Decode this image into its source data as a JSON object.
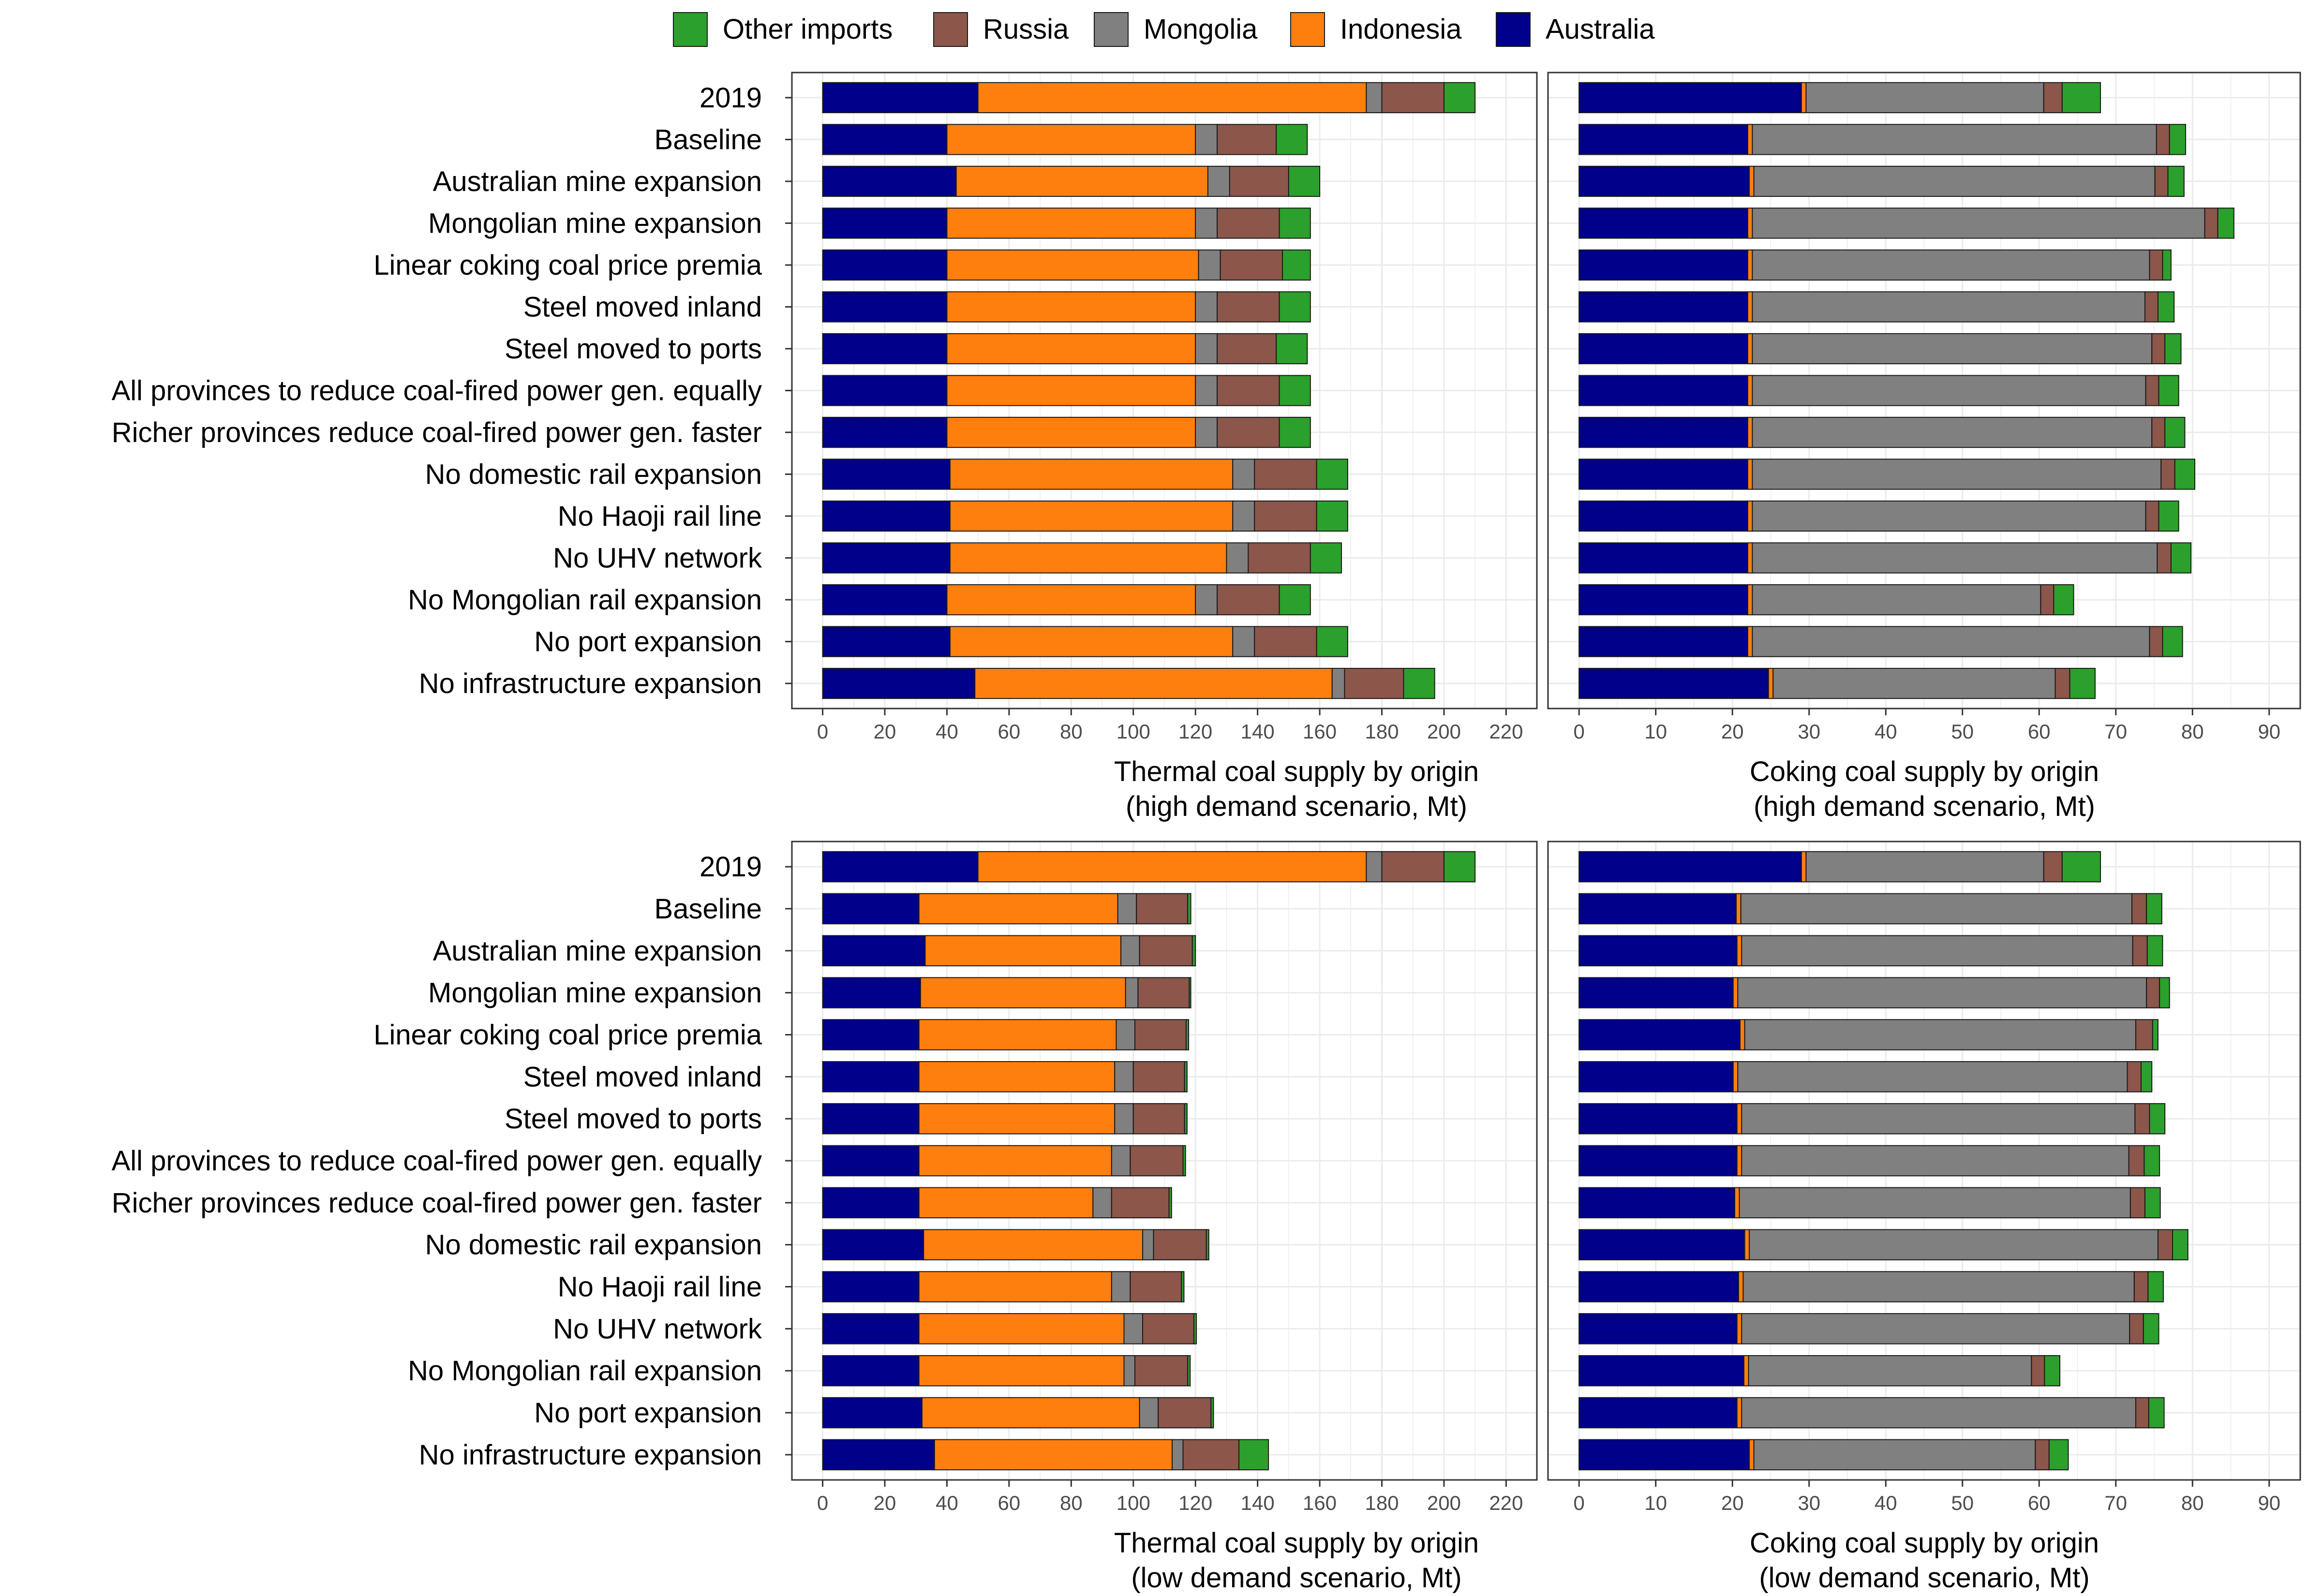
{
  "colors": {
    "Australia": "#00008b",
    "Indonesia": "#ff7f0e",
    "Mongolia": "#808080",
    "Russia": "#8c564b",
    "Other imports": "#2ca02c",
    "grid": "#ebebeb",
    "panel_border": "#333333",
    "bar_outline": "#1a1a1a"
  },
  "legend": {
    "items": [
      {
        "name": "Other imports",
        "color_key": "Other imports"
      },
      {
        "name": "Russia",
        "color_key": "Russia"
      },
      {
        "name": "Mongolia",
        "color_key": "Mongolia"
      },
      {
        "name": "Indonesia",
        "color_key": "Indonesia"
      },
      {
        "name": "Australia",
        "color_key": "Australia"
      }
    ]
  },
  "chart_data": [
    {
      "type": "bar",
      "orientation": "horizontal",
      "stacked": true,
      "title": "",
      "xlabel": "Thermal coal supply by origin\n(high demand scenario, Mt)",
      "xlim": [
        0,
        220
      ],
      "xticks": [
        0,
        20,
        40,
        60,
        80,
        100,
        120,
        140,
        160,
        180,
        200,
        220
      ],
      "categories": [
        "2019",
        "Baseline",
        "Australian mine expansion",
        "Mongolian mine expansion",
        "Linear coking coal price premia",
        "Steel moved inland",
        "Steel moved to ports",
        "All provinces to reduce coal-fired power gen. equally",
        "Richer provinces reduce coal-fired power gen. faster",
        "No domestic rail expansion",
        "No Haoji rail line",
        "No UHV network",
        "No Mongolian rail expansion",
        "No port expansion",
        "No infrastructure expansion"
      ],
      "series": [
        {
          "name": "Australia",
          "values": [
            50,
            40,
            43,
            40,
            40,
            40,
            40,
            40,
            40,
            41,
            41,
            41,
            40,
            41,
            49
          ]
        },
        {
          "name": "Indonesia",
          "values": [
            125,
            80,
            81,
            80,
            81,
            80,
            80,
            80,
            80,
            91,
            91,
            89,
            80,
            91,
            115
          ]
        },
        {
          "name": "Mongolia",
          "values": [
            5,
            7,
            7,
            7,
            7,
            7,
            7,
            7,
            7,
            7,
            7,
            7,
            7,
            7,
            4
          ]
        },
        {
          "name": "Russia",
          "values": [
            20,
            19,
            19,
            20,
            20,
            20,
            19,
            20,
            20,
            20,
            20,
            20,
            20,
            20,
            19
          ]
        },
        {
          "name": "Other imports",
          "values": [
            10,
            10,
            10,
            10,
            9,
            10,
            10,
            10,
            10,
            10,
            10,
            10,
            10,
            10,
            10
          ]
        }
      ]
    },
    {
      "type": "bar",
      "orientation": "horizontal",
      "stacked": true,
      "title": "",
      "xlabel": "Coking coal supply by origin\n(high demand scenario, Mt)",
      "xlim": [
        0,
        90
      ],
      "xticks": [
        0,
        10,
        20,
        30,
        40,
        50,
        60,
        70,
        80,
        90
      ],
      "categories": [
        "2019",
        "Baseline",
        "Australian mine expansion",
        "Mongolian mine expansion",
        "Linear coking coal price premia",
        "Steel moved inland",
        "Steel moved to ports",
        "All provinces to reduce coal-fired power gen. equally",
        "Richer provinces reduce coal-fired power gen. faster",
        "No domestic rail expansion",
        "No Haoji rail line",
        "No UHV network",
        "No Mongolian rail expansion",
        "No port expansion",
        "No infrastructure expansion"
      ],
      "series": [
        {
          "name": "Australia",
          "values": [
            29,
            22,
            22.2,
            22,
            22,
            22,
            22,
            22,
            22,
            22,
            22,
            22,
            22,
            22,
            24.7
          ]
        },
        {
          "name": "Indonesia",
          "values": [
            0.6,
            0.6,
            0.6,
            0.6,
            0.6,
            0.6,
            0.6,
            0.6,
            0.6,
            0.6,
            0.6,
            0.6,
            0.6,
            0.6,
            0.6
          ]
        },
        {
          "name": "Mongolia",
          "values": [
            31,
            52.7,
            52.3,
            59,
            51.8,
            51.2,
            52.1,
            51.3,
            52.1,
            53.3,
            51.3,
            52.8,
            37.6,
            51.8,
            36.8
          ]
        },
        {
          "name": "Russia",
          "values": [
            2.4,
            1.7,
            1.7,
            1.7,
            1.7,
            1.7,
            1.7,
            1.7,
            1.7,
            1.8,
            1.7,
            1.8,
            1.7,
            1.7,
            1.9
          ]
        },
        {
          "name": "Other imports",
          "values": [
            5,
            2.1,
            2.1,
            2.1,
            1.1,
            2.1,
            2.1,
            2.6,
            2.6,
            2.6,
            2.6,
            2.6,
            2.6,
            2.6,
            3.3
          ]
        }
      ]
    },
    {
      "type": "bar",
      "orientation": "horizontal",
      "stacked": true,
      "title": "",
      "xlabel": "Thermal coal supply by origin\n(low demand scenario, Mt)",
      "xlim": [
        0,
        220
      ],
      "xticks": [
        0,
        20,
        40,
        60,
        80,
        100,
        120,
        140,
        160,
        180,
        200,
        220
      ],
      "categories": [
        "2019",
        "Baseline",
        "Australian mine expansion",
        "Mongolian mine expansion",
        "Linear coking coal price premia",
        "Steel moved inland",
        "Steel moved to ports",
        "All provinces to reduce coal-fired power gen. equally",
        "Richer provinces reduce coal-fired power gen. faster",
        "No domestic rail expansion",
        "No Haoji rail line",
        "No UHV network",
        "No Mongolian rail expansion",
        "No port expansion",
        "No infrastructure expansion"
      ],
      "series": [
        {
          "name": "Australia",
          "values": [
            50,
            31,
            33,
            31.5,
            31,
            31,
            31,
            31,
            31,
            32.5,
            31,
            31,
            31,
            32,
            36
          ]
        },
        {
          "name": "Indonesia",
          "values": [
            125,
            64,
            63,
            66,
            63.5,
            63,
            63,
            62,
            56,
            70.5,
            62,
            66,
            66,
            70,
            76.5
          ]
        },
        {
          "name": "Mongolia",
          "values": [
            5,
            6,
            6,
            4,
            6,
            6,
            6,
            6,
            6,
            3.5,
            6,
            6,
            3.5,
            6,
            3.5
          ]
        },
        {
          "name": "Russia",
          "values": [
            20,
            16.5,
            17,
            16.5,
            16.5,
            16.5,
            16.5,
            17,
            18.5,
            17,
            16.5,
            16.5,
            17,
            17,
            18
          ]
        },
        {
          "name": "Other imports",
          "values": [
            10,
            1,
            1,
            0.5,
            0.8,
            0.8,
            0.8,
            0.8,
            0.8,
            0.8,
            0.8,
            0.8,
            0.8,
            0.8,
            9.5
          ]
        }
      ]
    },
    {
      "type": "bar",
      "orientation": "horizontal",
      "stacked": true,
      "title": "",
      "xlabel": "Coking coal supply by origin\n(low demand scenario, Mt)",
      "xlim": [
        0,
        90
      ],
      "xticks": [
        0,
        10,
        20,
        30,
        40,
        50,
        60,
        70,
        80,
        90
      ],
      "categories": [
        "2019",
        "Baseline",
        "Australian mine expansion",
        "Mongolian mine expansion",
        "Linear coking coal price premia",
        "Steel moved inland",
        "Steel moved to ports",
        "All provinces to reduce coal-fired power gen. equally",
        "Richer provinces reduce coal-fired power gen. faster",
        "No domestic rail expansion",
        "No Haoji rail line",
        "No UHV network",
        "No Mongolian rail expansion",
        "No port expansion",
        "No infrastructure expansion"
      ],
      "series": [
        {
          "name": "Australia",
          "values": [
            29,
            20.5,
            20.6,
            20.1,
            21,
            20.1,
            20.6,
            20.6,
            20.3,
            21.6,
            20.8,
            20.6,
            21.5,
            20.6,
            22.2
          ]
        },
        {
          "name": "Indonesia",
          "values": [
            0.6,
            0.6,
            0.6,
            0.6,
            0.6,
            0.6,
            0.6,
            0.6,
            0.6,
            0.6,
            0.6,
            0.6,
            0.6,
            0.6,
            0.6
          ]
        },
        {
          "name": "Mongolia",
          "values": [
            31,
            51,
            51,
            53.3,
            51,
            50.8,
            51.3,
            50.5,
            51,
            53.3,
            51,
            50.6,
            36.9,
            51.4,
            36.7
          ]
        },
        {
          "name": "Russia",
          "values": [
            2.4,
            1.9,
            1.9,
            1.7,
            2.2,
            1.8,
            1.9,
            2,
            1.9,
            1.9,
            1.8,
            1.8,
            1.7,
            1.7,
            1.8
          ]
        },
        {
          "name": "Other imports",
          "values": [
            5,
            2,
            2,
            1.3,
            0.7,
            1.4,
            2,
            2,
            2,
            2,
            2,
            2,
            2,
            2,
            2.5
          ]
        }
      ]
    }
  ]
}
